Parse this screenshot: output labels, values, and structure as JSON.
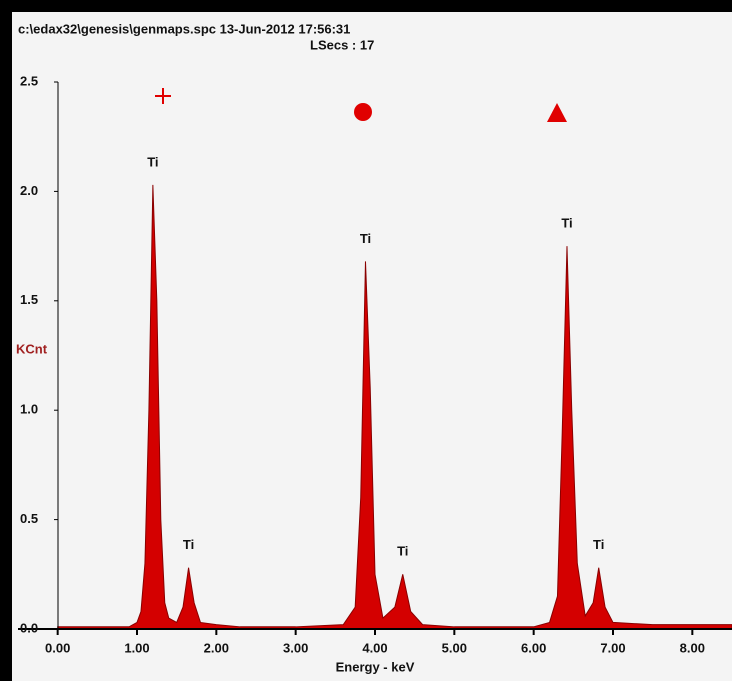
{
  "chart_data": {
    "type": "area",
    "title": "c:\\edax32\\genesis\\genmaps.spc  13-Jun-2012 17:56:31",
    "subtitle": "LSecs : 17",
    "x_label": "Energy - keV",
    "y_label": "KCnt",
    "color": "#d40000",
    "x": [
      0.0,
      0.5,
      0.9,
      1.0,
      1.05,
      1.1,
      1.15,
      1.2,
      1.25,
      1.3,
      1.35,
      1.4,
      1.5,
      1.58,
      1.65,
      1.72,
      1.8,
      2.0,
      2.3,
      3.0,
      3.6,
      3.75,
      3.82,
      3.88,
      3.94,
      4.0,
      4.1,
      4.25,
      4.35,
      4.45,
      4.6,
      5.0,
      6.0,
      6.2,
      6.3,
      6.36,
      6.42,
      6.48,
      6.55,
      6.65,
      6.75,
      6.82,
      6.9,
      7.0,
      7.5,
      8.5
    ],
    "values": [
      0.01,
      0.01,
      0.01,
      0.03,
      0.08,
      0.3,
      1.0,
      2.03,
      1.5,
      0.5,
      0.12,
      0.05,
      0.03,
      0.1,
      0.28,
      0.12,
      0.03,
      0.02,
      0.01,
      0.01,
      0.02,
      0.1,
      0.6,
      1.68,
      1.1,
      0.25,
      0.05,
      0.1,
      0.25,
      0.08,
      0.02,
      0.01,
      0.01,
      0.03,
      0.15,
      0.9,
      1.75,
      1.0,
      0.3,
      0.06,
      0.12,
      0.28,
      0.1,
      0.03,
      0.02,
      0.02
    ],
    "annotations": [
      {
        "label": "Ti",
        "x": 1.2,
        "y": 2.03
      },
      {
        "label": "Ti",
        "x": 1.65,
        "y": 0.28
      },
      {
        "label": "Ti",
        "x": 3.88,
        "y": 1.68
      },
      {
        "label": "Ti",
        "x": 4.35,
        "y": 0.25
      },
      {
        "label": "Ti",
        "x": 6.42,
        "y": 1.75
      },
      {
        "label": "Ti",
        "x": 6.82,
        "y": 0.28
      }
    ],
    "xlim": [
      -0.5,
      8.5
    ],
    "ylim": [
      0,
      2.5
    ],
    "xticks": [
      {
        "value": 0,
        "label": "0.00"
      },
      {
        "value": 1,
        "label": "1.00"
      },
      {
        "value": 2,
        "label": "2.00"
      },
      {
        "value": 3,
        "label": "3.00"
      },
      {
        "value": 4,
        "label": "4.00"
      },
      {
        "value": 5,
        "label": "5.00"
      },
      {
        "value": 6,
        "label": "6.00"
      },
      {
        "value": 7,
        "label": "7.00"
      },
      {
        "value": 8,
        "label": "8.00"
      }
    ],
    "yticks": [
      {
        "value": 0,
        "label": "0.0"
      },
      {
        "value": 0.5,
        "label": "0.5"
      },
      {
        "value": 1,
        "label": "1.0"
      },
      {
        "value": 1.5,
        "label": "1.5"
      },
      {
        "value": 2,
        "label": "2.0"
      },
      2.5
    ]
  }
}
